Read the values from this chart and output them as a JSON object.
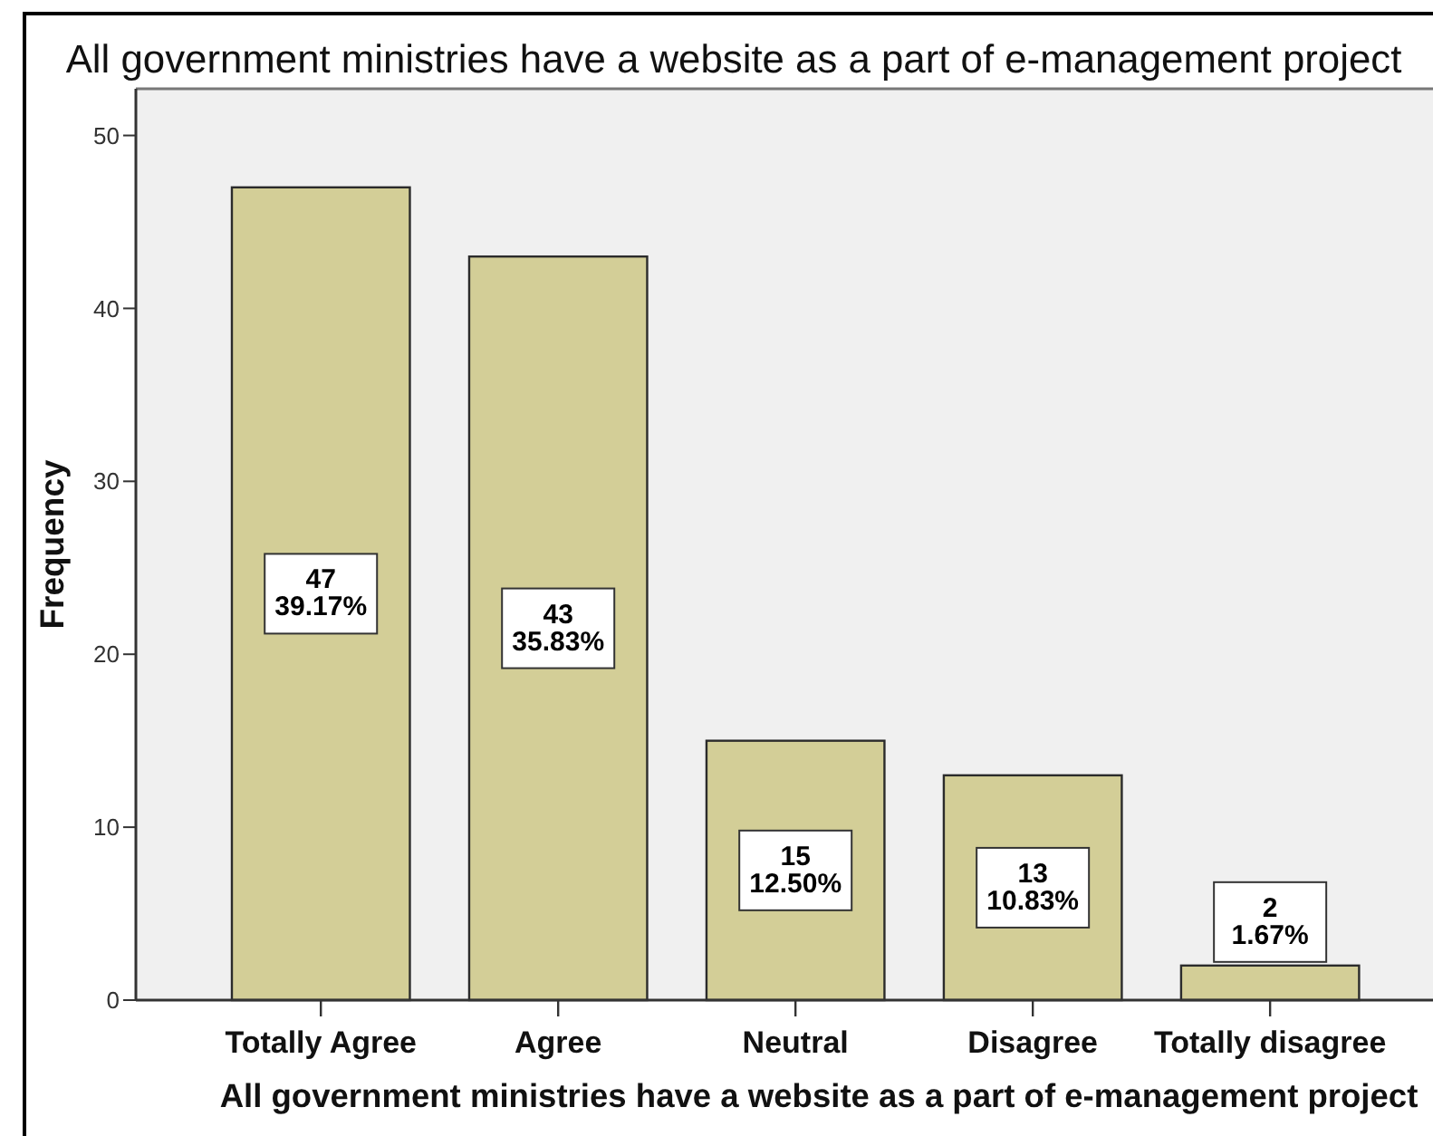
{
  "chart_data": {
    "type": "bar",
    "title": "All government ministries have a website as a part of e-management project",
    "xlabel": "All government ministries have a website as a part of e-management project",
    "ylabel": "Frequency",
    "categories": [
      "Totally Agree",
      "Agree",
      "Neutral",
      "Disagree",
      "Totally disagree"
    ],
    "values": [
      47,
      43,
      15,
      13,
      2
    ],
    "color": "#d3ce97",
    "value_labels": [
      "47\n39.17%",
      "43\n35.83%",
      "15\n12.50%",
      "13\n10.83%",
      "2\n1.67%"
    ],
    "ylim": [
      0,
      52.7
    ],
    "yticks": [
      0,
      10,
      20,
      30,
      40,
      50
    ]
  }
}
